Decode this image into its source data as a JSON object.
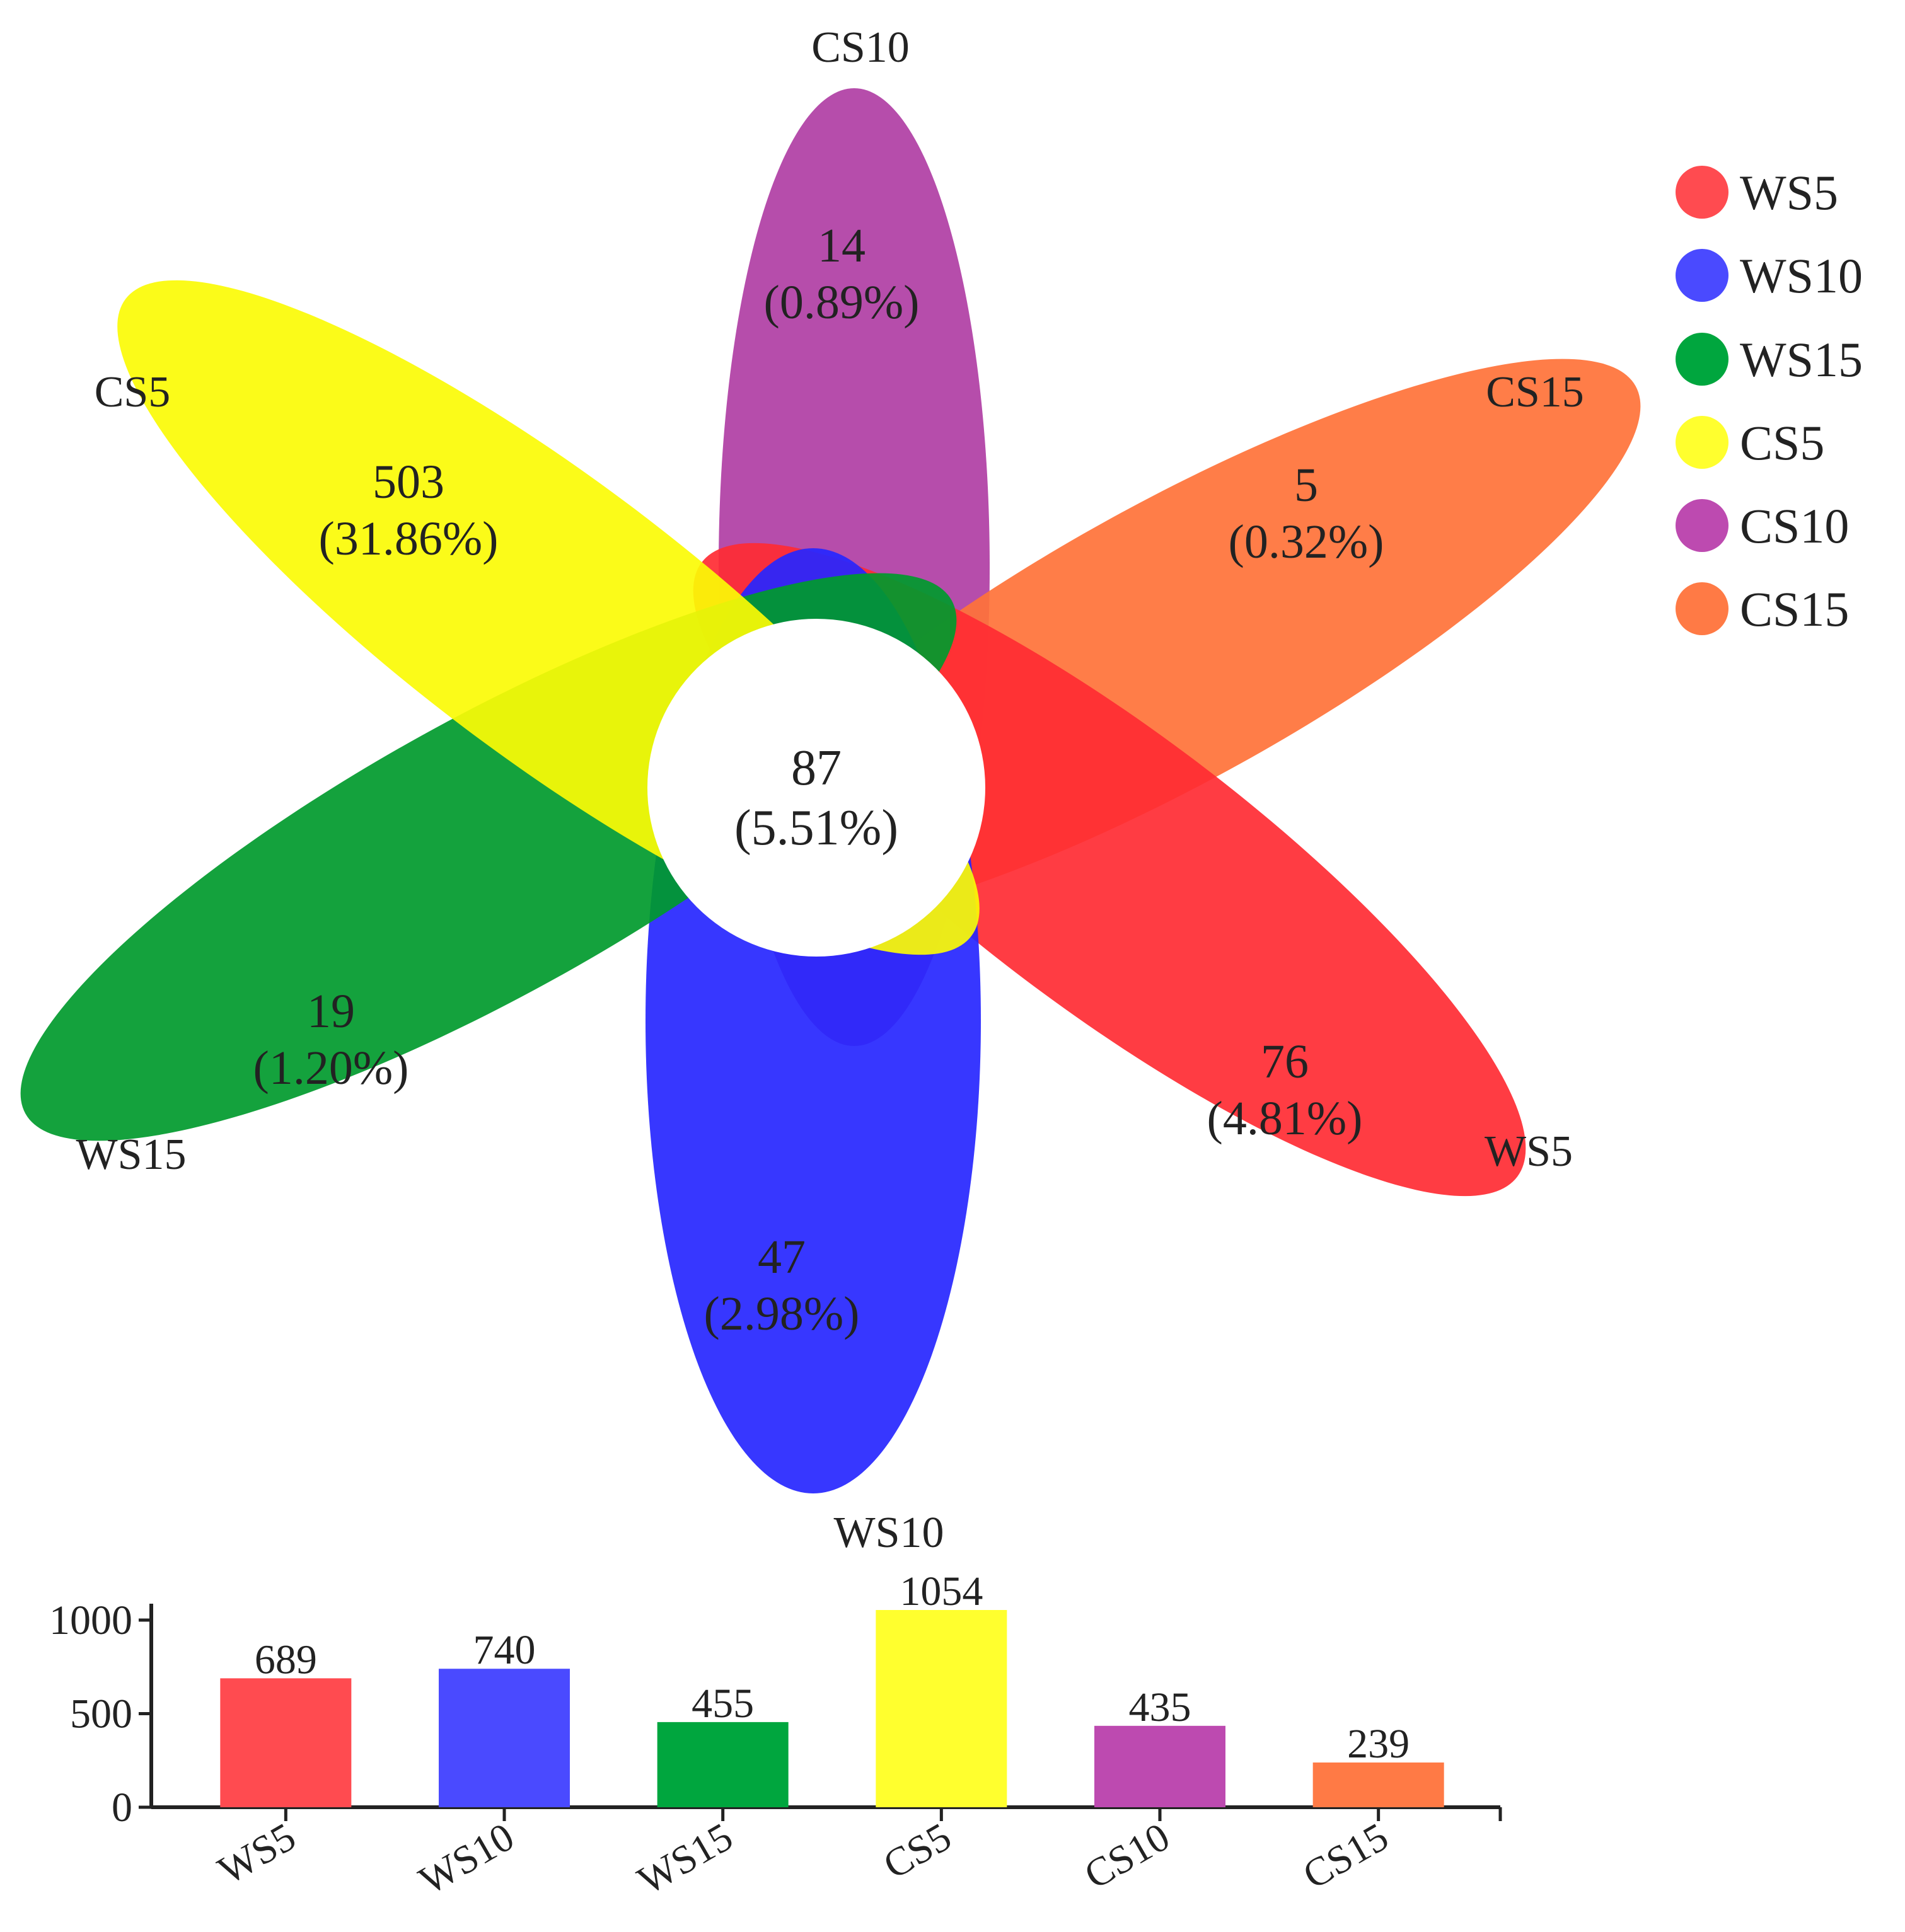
{
  "chart_data": [
    {
      "type": "flower",
      "title": "",
      "core": {
        "count": "87",
        "percent": "(5.51%)"
      },
      "petals": [
        {
          "name": "CS10",
          "color": "#b03ea4",
          "count": "14",
          "percent": "(0.89%)"
        },
        {
          "name": "CS15",
          "color": "#ff7238",
          "count": "5",
          "percent": "(0.32%)"
        },
        {
          "name": "WS5",
          "color": "#ff2b33",
          "count": "76",
          "percent": "(4.81%)"
        },
        {
          "name": "WS10",
          "color": "#2626ff",
          "count": "47",
          "percent": "(2.98%)"
        },
        {
          "name": "WS15",
          "color": "#009a2c",
          "count": "19",
          "percent": "(1.20%)"
        },
        {
          "name": "CS5",
          "color": "#fbfb05",
          "count": "503",
          "percent": "(31.86%)"
        }
      ],
      "legend": [
        {
          "name": "WS5",
          "color": "#ff4b50"
        },
        {
          "name": "WS10",
          "color": "#4a4aff"
        },
        {
          "name": "WS15",
          "color": "#00a63e"
        },
        {
          "name": "CS5",
          "color": "#ffff2e"
        },
        {
          "name": "CS10",
          "color": "#bd4ab0"
        },
        {
          "name": "CS15",
          "color": "#ff7a45"
        }
      ]
    },
    {
      "type": "bar",
      "title": "",
      "xlabel": "",
      "ylabel": "",
      "categories": [
        "WS5",
        "WS10",
        "WS15",
        "CS5",
        "CS10",
        "CS15"
      ],
      "values": [
        689,
        740,
        455,
        1054,
        435,
        239
      ],
      "value_labels": [
        "689",
        "740",
        "455",
        "1054",
        "435",
        "239"
      ],
      "colors": [
        "#ff4b50",
        "#4a4aff",
        "#00a63e",
        "#ffff2e",
        "#bd4ab0",
        "#ff7a45"
      ],
      "ylim": [
        0,
        1054
      ],
      "yticks": [
        0,
        500,
        1000
      ],
      "ytick_labels": [
        "0",
        "500",
        "1000"
      ]
    }
  ]
}
